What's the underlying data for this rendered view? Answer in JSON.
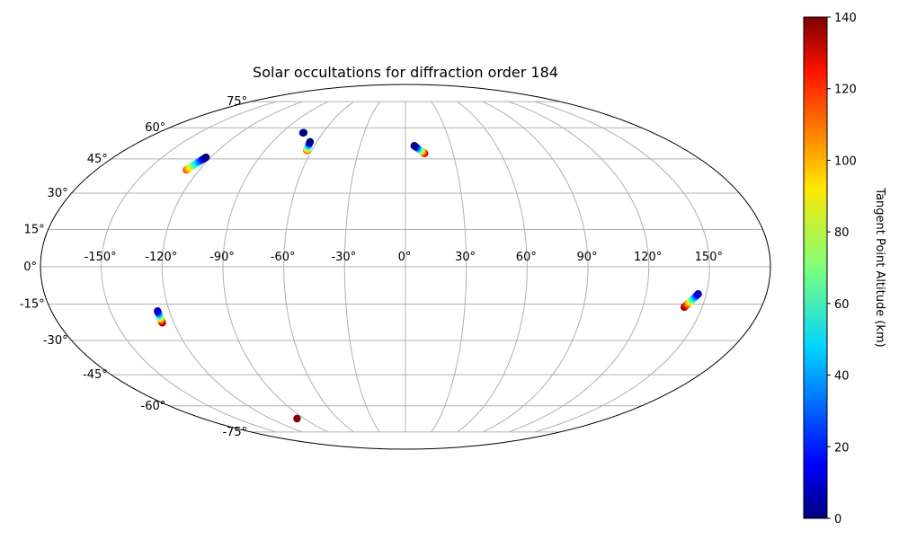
{
  "chart_data": {
    "type": "scatter",
    "projection": "mollweide",
    "title": "Solar occultations for diffraction order 184",
    "grid": true,
    "lon_ticks": [
      -150,
      -120,
      -90,
      -60,
      -30,
      0,
      30,
      60,
      90,
      120,
      150
    ],
    "lon_tick_labels": [
      "-150°",
      "-120°",
      "-90°",
      "-60°",
      "-30°",
      "0°",
      "30°",
      "60°",
      "90°",
      "120°",
      "150°"
    ],
    "lat_ticks": [
      75,
      60,
      45,
      30,
      15,
      0,
      -15,
      -30,
      -45,
      -60,
      -75
    ],
    "lat_tick_labels": [
      "75°",
      "60°",
      "45°",
      "30°",
      "15°",
      "0°",
      "-15°",
      "-30°",
      "-45°",
      "-60°",
      "-75°"
    ],
    "colorbar": {
      "label": "Tangent Point Altitude (km)",
      "range": [
        0,
        140
      ],
      "ticks": [
        0,
        20,
        40,
        60,
        80,
        100,
        120,
        140
      ],
      "tick_labels": [
        "0",
        "20",
        "40",
        "60",
        "80",
        "100",
        "120",
        "140"
      ],
      "colormap": "jet"
    },
    "series": [
      {
        "start": {
          "lon": -123.0,
          "lat": 45.7,
          "alt": 0
        },
        "end": {
          "lon": -127.5,
          "lat": 40.0,
          "alt": 110
        },
        "n": 12
      },
      {
        "start": {
          "lon": -74.0,
          "lat": 57.5,
          "alt": 0
        },
        "end": {
          "lon": -74.5,
          "lat": 57.4,
          "alt": 8
        },
        "n": 3
      },
      {
        "start": {
          "lon": -64.6,
          "lat": 53.0,
          "alt": 0
        },
        "end": {
          "lon": -63.2,
          "lat": 48.9,
          "alt": 110
        },
        "n": 8
      },
      {
        "start": {
          "lon": 5.8,
          "lat": 51.1,
          "alt": 0
        },
        "end": {
          "lon": 12.0,
          "lat": 47.5,
          "alt": 130
        },
        "n": 12
      },
      {
        "start": {
          "lon": -126.0,
          "lat": -17.8,
          "alt": 10
        },
        "end": {
          "lon": -126.0,
          "lat": -22.6,
          "alt": 140
        },
        "n": 10
      },
      {
        "start": {
          "lon": -96.5,
          "lat": -66.9,
          "alt": 140
        },
        "end": {
          "lon": -96.5,
          "lat": -66.9,
          "alt": 140
        },
        "n": 1
      },
      {
        "start": {
          "lon": 146.0,
          "lat": -10.9,
          "alt": 10
        },
        "end": {
          "lon": 141.0,
          "lat": -16.2,
          "alt": 140
        },
        "n": 12
      }
    ]
  }
}
